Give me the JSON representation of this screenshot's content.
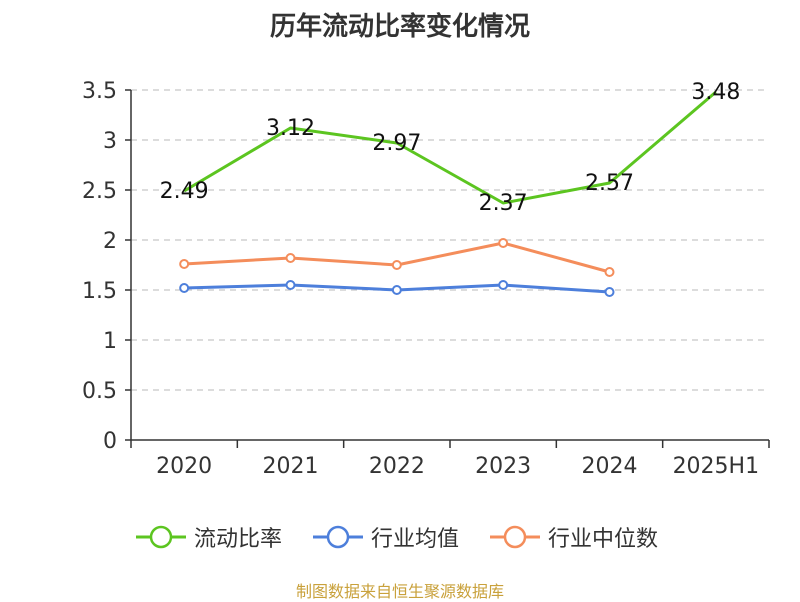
{
  "chart_data": {
    "type": "line",
    "title": "历年流动比率变化情况",
    "categories": [
      "2020",
      "2021",
      "2022",
      "2023",
      "2024",
      "2025H1"
    ],
    "ylim": [
      0,
      3.5
    ],
    "yticks": [
      "0",
      "0.5",
      "1",
      "1.5",
      "2",
      "2.5",
      "3",
      "3.5"
    ],
    "grid": true,
    "legend_position": "bottom",
    "series": [
      {
        "name": "流动比率",
        "color": "#5cc520",
        "values": [
          2.49,
          3.12,
          2.97,
          2.37,
          2.57,
          3.48
        ],
        "labels": [
          "2.49",
          "3.12",
          "2.97",
          "2.37",
          "2.57",
          "3.48"
        ]
      },
      {
        "name": "行业均值",
        "color": "#4d7fdb",
        "values": [
          1.52,
          1.55,
          1.5,
          1.55,
          1.48,
          null
        ]
      },
      {
        "name": "行业中位数",
        "color": "#f48d5b",
        "values": [
          1.76,
          1.82,
          1.75,
          1.97,
          1.68,
          null
        ]
      }
    ]
  },
  "source": {
    "text": "制图数据来自恒生聚源数据库",
    "color": "#c9a13b"
  }
}
